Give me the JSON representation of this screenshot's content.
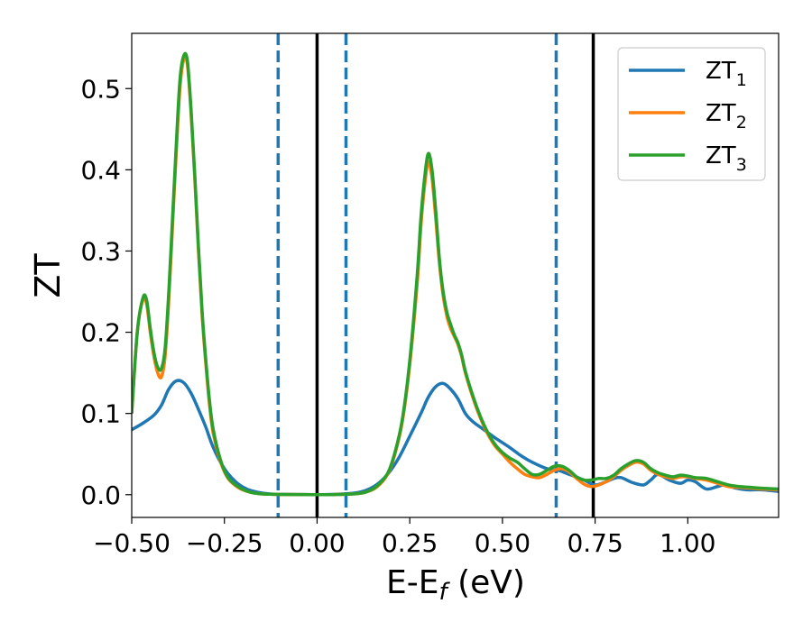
{
  "chart_data": {
    "type": "line",
    "xlabel": "E-E_f (eV)",
    "ylabel": "ZT",
    "xlim": [
      -0.5,
      1.245
    ],
    "ylim": [
      -0.028,
      0.568
    ],
    "xticks": [
      -0.5,
      -0.25,
      0.0,
      0.25,
      0.5,
      0.75,
      1.0
    ],
    "xtick_labels": [
      "−0.50",
      "−0.25",
      "0.00",
      "0.25",
      "0.50",
      "0.75",
      "1.00"
    ],
    "yticks": [
      0.0,
      0.1,
      0.2,
      0.3,
      0.4,
      0.5
    ],
    "ytick_labels": [
      "0.0",
      "0.1",
      "0.2",
      "0.3",
      "0.4",
      "0.5"
    ],
    "grid": false,
    "legend_position": "top-right",
    "vertical_lines": [
      {
        "x": -0.105,
        "style": "dashed",
        "color": "#1f77b4"
      },
      {
        "x": 0.0,
        "style": "solid",
        "color": "#000000"
      },
      {
        "x": 0.078,
        "style": "dashed",
        "color": "#1f77b4"
      },
      {
        "x": 0.645,
        "style": "dashed",
        "color": "#1f77b4"
      },
      {
        "x": 0.745,
        "style": "solid",
        "color": "#000000"
      }
    ],
    "series": [
      {
        "name": "ZT",
        "subscript": "1",
        "color": "#1f77b4",
        "x": [
          -0.5,
          -0.47,
          -0.44,
          -0.42,
          -0.4,
          -0.38,
          -0.36,
          -0.34,
          -0.32,
          -0.3,
          -0.28,
          -0.25,
          -0.22,
          -0.19,
          -0.16,
          -0.13,
          -0.1,
          -0.05,
          0.0,
          0.05,
          0.1,
          0.13,
          0.16,
          0.19,
          0.22,
          0.25,
          0.28,
          0.3,
          0.32,
          0.34,
          0.36,
          0.38,
          0.4,
          0.42,
          0.45,
          0.48,
          0.52,
          0.55,
          0.58,
          0.62,
          0.65,
          0.68,
          0.72,
          0.75,
          0.78,
          0.8,
          0.82,
          0.85,
          0.88,
          0.9,
          0.92,
          0.95,
          0.98,
          1.0,
          1.02,
          1.05,
          1.08,
          1.1,
          1.13,
          1.16,
          1.2,
          1.245
        ],
        "y": [
          0.08,
          0.088,
          0.098,
          0.11,
          0.13,
          0.14,
          0.138,
          0.125,
          0.105,
          0.083,
          0.058,
          0.032,
          0.016,
          0.007,
          0.003,
          0.001,
          0.0005,
          0.0002,
          0.0,
          0.0005,
          0.002,
          0.005,
          0.012,
          0.025,
          0.045,
          0.072,
          0.1,
          0.12,
          0.133,
          0.137,
          0.13,
          0.118,
          0.1,
          0.09,
          0.08,
          0.07,
          0.058,
          0.048,
          0.04,
          0.032,
          0.03,
          0.025,
          0.018,
          0.012,
          0.016,
          0.02,
          0.021,
          0.015,
          0.012,
          0.018,
          0.025,
          0.018,
          0.014,
          0.018,
          0.016,
          0.007,
          0.01,
          0.012,
          0.008,
          0.006,
          0.006,
          0.004
        ]
      },
      {
        "name": "ZT",
        "subscript": "2",
        "color": "#ff7f0e",
        "x": [
          -0.5,
          -0.485,
          -0.47,
          -0.46,
          -0.45,
          -0.44,
          -0.43,
          -0.42,
          -0.41,
          -0.4,
          -0.39,
          -0.38,
          -0.37,
          -0.36,
          -0.35,
          -0.34,
          -0.33,
          -0.32,
          -0.31,
          -0.3,
          -0.29,
          -0.28,
          -0.26,
          -0.24,
          -0.21,
          -0.18,
          -0.15,
          -0.12,
          -0.1,
          -0.05,
          0.0,
          0.05,
          0.1,
          0.13,
          0.16,
          0.19,
          0.21,
          0.23,
          0.25,
          0.27,
          0.28,
          0.29,
          0.3,
          0.31,
          0.32,
          0.33,
          0.34,
          0.35,
          0.36,
          0.37,
          0.38,
          0.39,
          0.4,
          0.42,
          0.44,
          0.46,
          0.48,
          0.5,
          0.52,
          0.54,
          0.56,
          0.58,
          0.6,
          0.62,
          0.64,
          0.66,
          0.68,
          0.7,
          0.72,
          0.74,
          0.76,
          0.78,
          0.8,
          0.82,
          0.84,
          0.86,
          0.88,
          0.9,
          0.92,
          0.94,
          0.96,
          0.98,
          1.0,
          1.02,
          1.05,
          1.08,
          1.11,
          1.14,
          1.17,
          1.2,
          1.245
        ],
        "y": [
          0.1,
          0.2,
          0.24,
          0.235,
          0.2,
          0.17,
          0.15,
          0.145,
          0.17,
          0.24,
          0.33,
          0.42,
          0.5,
          0.535,
          0.53,
          0.47,
          0.39,
          0.3,
          0.22,
          0.16,
          0.11,
          0.075,
          0.04,
          0.02,
          0.008,
          0.003,
          0.001,
          0.0005,
          0.0003,
          0.0001,
          0.0,
          0.0002,
          0.001,
          0.003,
          0.009,
          0.025,
          0.05,
          0.09,
          0.16,
          0.26,
          0.33,
          0.38,
          0.41,
          0.39,
          0.34,
          0.285,
          0.245,
          0.22,
          0.205,
          0.195,
          0.185,
          0.17,
          0.15,
          0.12,
          0.095,
          0.075,
          0.06,
          0.05,
          0.04,
          0.032,
          0.025,
          0.022,
          0.021,
          0.025,
          0.03,
          0.032,
          0.028,
          0.02,
          0.013,
          0.01,
          0.012,
          0.016,
          0.022,
          0.03,
          0.036,
          0.04,
          0.038,
          0.03,
          0.025,
          0.022,
          0.02,
          0.022,
          0.022,
          0.02,
          0.018,
          0.014,
          0.01,
          0.009,
          0.008,
          0.007,
          0.006
        ]
      },
      {
        "name": "ZT",
        "subscript": "3",
        "color": "#2ca02c",
        "x": [
          -0.5,
          -0.485,
          -0.47,
          -0.46,
          -0.45,
          -0.44,
          -0.43,
          -0.42,
          -0.41,
          -0.4,
          -0.39,
          -0.38,
          -0.37,
          -0.36,
          -0.35,
          -0.34,
          -0.33,
          -0.32,
          -0.31,
          -0.3,
          -0.29,
          -0.28,
          -0.26,
          -0.24,
          -0.21,
          -0.18,
          -0.15,
          -0.12,
          -0.1,
          -0.05,
          0.0,
          0.05,
          0.1,
          0.13,
          0.16,
          0.19,
          0.21,
          0.23,
          0.25,
          0.27,
          0.28,
          0.29,
          0.3,
          0.31,
          0.32,
          0.33,
          0.34,
          0.35,
          0.36,
          0.37,
          0.38,
          0.39,
          0.4,
          0.42,
          0.44,
          0.46,
          0.48,
          0.5,
          0.52,
          0.54,
          0.56,
          0.58,
          0.6,
          0.62,
          0.64,
          0.66,
          0.68,
          0.7,
          0.72,
          0.74,
          0.76,
          0.78,
          0.8,
          0.82,
          0.84,
          0.86,
          0.88,
          0.9,
          0.92,
          0.94,
          0.96,
          0.98,
          1.0,
          1.02,
          1.05,
          1.08,
          1.11,
          1.14,
          1.17,
          1.2,
          1.245
        ],
        "y": [
          0.1,
          0.2,
          0.242,
          0.24,
          0.205,
          0.175,
          0.157,
          0.155,
          0.18,
          0.25,
          0.34,
          0.43,
          0.51,
          0.54,
          0.535,
          0.475,
          0.395,
          0.305,
          0.225,
          0.165,
          0.115,
          0.08,
          0.042,
          0.021,
          0.009,
          0.003,
          0.001,
          0.0005,
          0.0003,
          0.0001,
          0.0,
          0.0002,
          0.001,
          0.003,
          0.01,
          0.026,
          0.052,
          0.093,
          0.165,
          0.27,
          0.34,
          0.39,
          0.42,
          0.4,
          0.35,
          0.29,
          0.25,
          0.225,
          0.21,
          0.197,
          0.187,
          0.172,
          0.152,
          0.122,
          0.097,
          0.077,
          0.062,
          0.052,
          0.045,
          0.04,
          0.032,
          0.025,
          0.025,
          0.03,
          0.035,
          0.035,
          0.03,
          0.022,
          0.018,
          0.018,
          0.02,
          0.02,
          0.024,
          0.032,
          0.038,
          0.042,
          0.04,
          0.032,
          0.027,
          0.024,
          0.022,
          0.024,
          0.023,
          0.021,
          0.02,
          0.016,
          0.012,
          0.01,
          0.009,
          0.008,
          0.007
        ]
      }
    ]
  }
}
